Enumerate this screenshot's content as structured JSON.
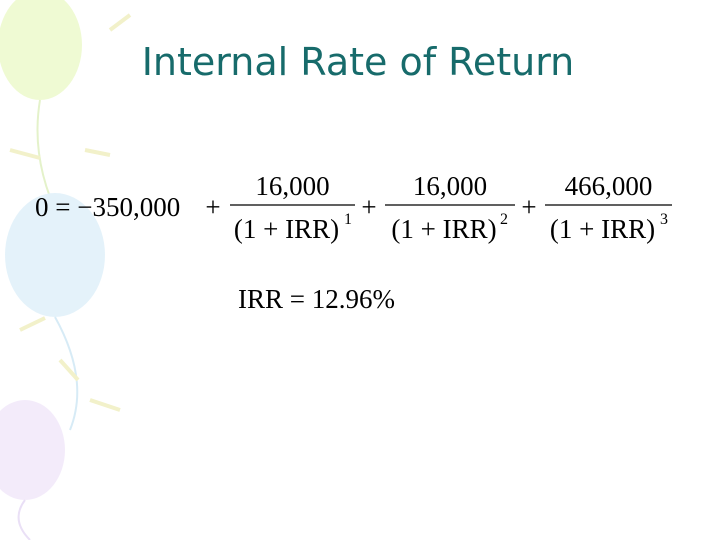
{
  "header": {
    "title": "Internal Rate of Return"
  },
  "equation": {
    "lhs": "0 = −350,000",
    "terms": [
      {
        "sign": "+",
        "numerator": "16,000",
        "denominator": "(1 + IRR)",
        "exponent": "1"
      },
      {
        "sign": "+",
        "numerator": "16,000",
        "denominator": "(1 + IRR)",
        "exponent": "2"
      },
      {
        "sign": "+",
        "numerator": "466,000",
        "denominator": "(1 + IRR)",
        "exponent": "3"
      }
    ]
  },
  "result": "IRR = 12.96%"
}
